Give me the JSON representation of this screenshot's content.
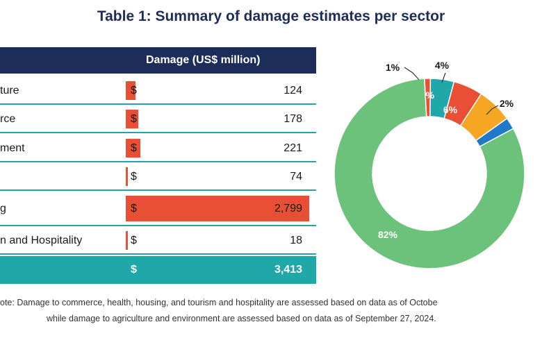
{
  "title": "Table 1: Summary of damage estimates per sector",
  "chart_data": [
    {
      "type": "table",
      "columns": [
        "",
        "Damage (US$ million)"
      ],
      "rows": [
        {
          "label": "ture",
          "currency": "$",
          "value": "124",
          "numeric": 124
        },
        {
          "label": "rce",
          "currency": "$",
          "value": "178",
          "numeric": 178
        },
        {
          "label": "ment",
          "currency": "$",
          "value": "221",
          "numeric": 221
        },
        {
          "label": "",
          "currency": "$",
          "value": "74",
          "numeric": 74
        },
        {
          "label": "g",
          "currency": "$",
          "value": "2,799",
          "numeric": 2799
        },
        {
          "label": "n and Hospitality",
          "currency": "$",
          "value": "18",
          "numeric": 18
        }
      ],
      "total": {
        "label": "",
        "currency": "$",
        "value": "3,413"
      }
    },
    {
      "type": "pie",
      "slices": [
        {
          "label": "82%",
          "value": 82,
          "color": "#6cc27a"
        },
        {
          "label": "1%",
          "value": 1,
          "color": "#e94f35"
        },
        {
          "label": "4%",
          "value": 4,
          "color": "#20a8a9"
        },
        {
          "label": "5%",
          "value": 5,
          "color": "#e94f35"
        },
        {
          "label": "6%",
          "value": 6,
          "color": "#f5a623"
        },
        {
          "label": "2%",
          "value": 2,
          "color": "#1f78c8"
        }
      ]
    }
  ],
  "note": {
    "line1": "ote: Damage to commerce, health, housing, and tourism and hospitality are assessed based on data as of Octobe",
    "line2": "while damage to agriculture and environment are assessed based on data as of September 27, 2024."
  }
}
